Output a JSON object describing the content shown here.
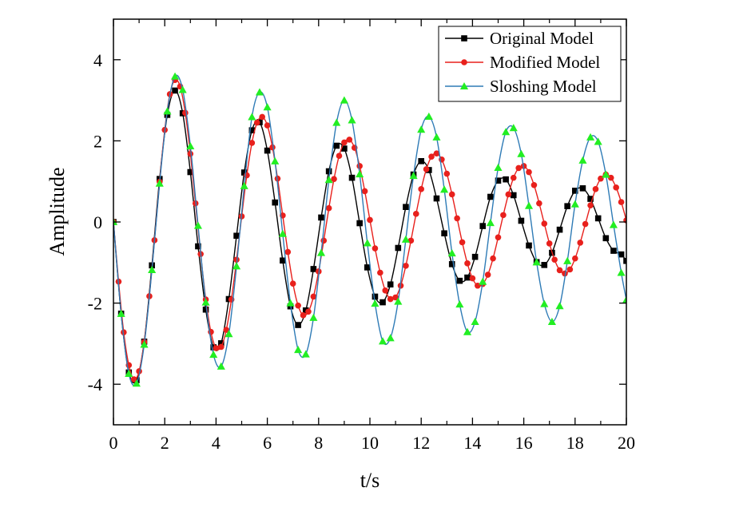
{
  "chart_data": {
    "type": "line",
    "title": "",
    "xlabel": "t/s",
    "ylabel": "Amplitude",
    "xlim": [
      0,
      20
    ],
    "ylim": [
      -5,
      5
    ],
    "x_ticks": [
      0,
      2,
      4,
      6,
      8,
      10,
      12,
      14,
      16,
      18,
      20
    ],
    "y_ticks": [
      -4,
      -2,
      0,
      2,
      4
    ],
    "grid": false,
    "legend_position": "top-right",
    "series": [
      {
        "name": "Original Model",
        "color": "#000000",
        "marker": "square",
        "x": [
          0,
          0.3,
          0.6,
          0.9,
          1.2,
          1.5,
          1.8,
          2.1,
          2.4,
          2.7,
          3.0,
          3.3,
          3.6,
          3.9,
          4.2,
          4.5,
          4.8,
          5.1,
          5.4,
          5.7,
          6.0,
          6.3,
          6.6,
          6.9,
          7.2,
          7.5,
          7.8,
          8.1,
          8.4,
          8.7,
          9.0,
          9.3,
          9.6,
          9.9,
          10.2,
          10.5,
          10.8,
          11.1,
          11.4,
          11.7,
          12.0,
          12.3,
          12.6,
          12.9,
          13.2,
          13.5,
          13.8,
          14.1,
          14.4,
          14.7,
          15.0,
          15.3,
          15.6,
          15.9,
          16.2,
          16.5,
          16.8,
          17.1,
          17.4,
          17.7,
          18.0,
          18.3,
          18.6,
          18.9,
          19.2,
          19.5,
          19.8,
          20.0
        ],
        "y": [
          0.0,
          -2.26,
          -3.71,
          -3.9,
          -2.95,
          -1.07,
          1.06,
          2.64,
          3.24,
          2.68,
          1.23,
          -0.6,
          -2.16,
          -3.09,
          -2.99,
          -1.9,
          -0.34,
          1.22,
          2.26,
          2.46,
          1.76,
          0.48,
          -0.95,
          -2.08,
          -2.54,
          -2.18,
          -1.16,
          0.11,
          1.25,
          1.88,
          1.81,
          1.09,
          -0.03,
          -1.12,
          -1.84,
          -1.98,
          -1.54,
          -0.64,
          0.37,
          1.17,
          1.5,
          1.28,
          0.58,
          -0.28,
          -1.04,
          -1.45,
          -1.37,
          -0.86,
          -0.1,
          0.62,
          1.02,
          1.05,
          0.66,
          0.03,
          -0.58,
          -0.99,
          -1.06,
          -0.76,
          -0.19,
          0.39,
          0.77,
          0.83,
          0.57,
          0.09,
          -0.4,
          -0.71,
          -0.8,
          -0.96
        ]
      },
      {
        "name": "Modified Model",
        "color": "#e8201c",
        "marker": "circle",
        "x": [
          0,
          0.2,
          0.4,
          0.6,
          0.8,
          1.0,
          1.2,
          1.4,
          1.6,
          1.8,
          2.0,
          2.2,
          2.4,
          2.6,
          2.8,
          3.0,
          3.2,
          3.4,
          3.6,
          3.8,
          4.0,
          4.2,
          4.4,
          4.6,
          4.8,
          5.0,
          5.2,
          5.4,
          5.6,
          5.8,
          6.0,
          6.2,
          6.4,
          6.6,
          6.8,
          7.0,
          7.2,
          7.4,
          7.6,
          7.8,
          8.0,
          8.2,
          8.4,
          8.6,
          8.8,
          9.0,
          9.2,
          9.4,
          9.6,
          9.8,
          10.0,
          10.2,
          10.4,
          10.6,
          10.8,
          11.0,
          11.2,
          11.4,
          11.6,
          11.8,
          12.0,
          12.2,
          12.4,
          12.6,
          12.8,
          13.0,
          13.2,
          13.4,
          13.6,
          13.8,
          14.0,
          14.2,
          14.4,
          14.6,
          14.8,
          15.0,
          15.2,
          15.4,
          15.6,
          15.8,
          16.0,
          16.2,
          16.4,
          16.6,
          16.8,
          17.0,
          17.2,
          17.4,
          17.6,
          17.8,
          18.0,
          18.2,
          18.4,
          18.6,
          18.8,
          19.0,
          19.2,
          19.4,
          19.6,
          19.8,
          20.0
        ],
        "y": [
          0.0,
          -1.47,
          -2.72,
          -3.53,
          -3.88,
          -3.68,
          -2.96,
          -1.83,
          -0.45,
          0.99,
          2.27,
          3.15,
          3.5,
          3.34,
          2.69,
          1.68,
          0.46,
          -0.79,
          -1.91,
          -2.71,
          -3.11,
          -3.08,
          -2.66,
          -1.91,
          -0.93,
          0.14,
          1.15,
          1.95,
          2.45,
          2.59,
          2.38,
          1.84,
          1.07,
          0.16,
          -0.74,
          -1.52,
          -2.06,
          -2.3,
          -2.21,
          -1.84,
          -1.22,
          -0.46,
          0.34,
          1.06,
          1.63,
          1.96,
          2.03,
          1.83,
          1.38,
          0.76,
          0.05,
          -0.65,
          -1.25,
          -1.69,
          -1.9,
          -1.86,
          -1.57,
          -1.08,
          -0.46,
          0.2,
          0.81,
          1.3,
          1.61,
          1.69,
          1.54,
          1.19,
          0.68,
          0.09,
          -0.5,
          -1.02,
          -1.39,
          -1.57,
          -1.53,
          -1.3,
          -0.9,
          -0.38,
          0.17,
          0.68,
          1.09,
          1.33,
          1.38,
          1.23,
          0.91,
          0.46,
          -0.04,
          -0.53,
          -0.93,
          -1.19,
          -1.27,
          -1.17,
          -0.9,
          -0.51,
          -0.05,
          0.41,
          0.81,
          1.07,
          1.17,
          1.09,
          0.85,
          0.49,
          0.04
        ]
      },
      {
        "name": "Sloshing Model",
        "color": "#2e7bb6",
        "marker": "triangle",
        "marker_color": "#22ee22",
        "x": [
          0,
          0.3,
          0.6,
          0.9,
          1.2,
          1.5,
          1.8,
          2.1,
          2.4,
          2.7,
          3.0,
          3.3,
          3.6,
          3.9,
          4.2,
          4.5,
          4.8,
          5.1,
          5.4,
          5.7,
          6.0,
          6.3,
          6.6,
          6.9,
          7.2,
          7.5,
          7.8,
          8.1,
          8.4,
          8.7,
          9.0,
          9.3,
          9.6,
          9.9,
          10.2,
          10.5,
          10.8,
          11.1,
          11.4,
          11.7,
          12.0,
          12.3,
          12.6,
          12.9,
          13.2,
          13.5,
          13.8,
          14.1,
          14.4,
          14.7,
          15.0,
          15.3,
          15.6,
          15.9,
          16.2,
          16.5,
          16.8,
          17.1,
          17.4,
          17.7,
          18.0,
          18.3,
          18.6,
          18.9,
          19.2,
          19.5,
          19.8,
          20.0
        ],
        "y": [
          0.0,
          -2.26,
          -3.74,
          -3.98,
          -3.02,
          -1.18,
          0.95,
          2.73,
          3.59,
          3.26,
          1.87,
          -0.09,
          -1.98,
          -3.27,
          -3.56,
          -2.76,
          -1.09,
          0.89,
          2.59,
          3.2,
          2.83,
          1.5,
          -0.29,
          -2.0,
          -3.15,
          -3.26,
          -2.36,
          -0.76,
          1.04,
          2.45,
          3.0,
          2.51,
          1.18,
          -0.52,
          -2.01,
          -2.94,
          -2.86,
          -1.96,
          -0.43,
          1.14,
          2.28,
          2.6,
          2.09,
          0.8,
          -0.77,
          -2.03,
          -2.71,
          -2.46,
          -1.47,
          -0.02,
          1.34,
          2.22,
          2.32,
          1.68,
          0.4,
          -0.99,
          -2.02,
          -2.46,
          -2.07,
          -0.96,
          0.44,
          1.52,
          2.09,
          1.98,
          1.17,
          -0.07,
          -1.25,
          -1.92
        ]
      }
    ]
  }
}
